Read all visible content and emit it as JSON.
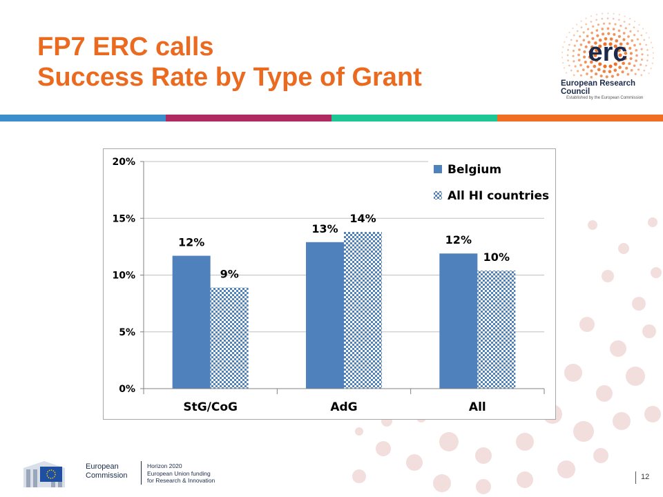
{
  "slide": {
    "title_line1": "FP7 ERC calls",
    "title_line2": "Success Rate by Type of Grant",
    "page_number": "12"
  },
  "erc": {
    "logo_text": "erc",
    "name": "European Research Council",
    "subtitle": "Established by the European Commission"
  },
  "footer": {
    "ec_line1": "European",
    "ec_line2": "Commission",
    "h2020_line1": "Horizon 2020",
    "h2020_line2": "European Union funding",
    "h2020_line3": "for Research & Innovation"
  },
  "colors": {
    "title": "#ea6a1f",
    "stripe": [
      "#3c8dcb",
      "#b02a62",
      "#1dc795",
      "#f16d22"
    ],
    "belgium": "#4f81bd",
    "all_hi_pattern": "#4f81bd",
    "dots": "#f3dede"
  },
  "chart_data": {
    "type": "bar",
    "categories": [
      "StG/CoG",
      "AdG",
      "All"
    ],
    "series": [
      {
        "name": "Belgium",
        "values": [
          11.7,
          12.9,
          11.9
        ],
        "labels": [
          "12%",
          "13%",
          "12%"
        ],
        "pattern": "solid"
      },
      {
        "name": "All HI countries",
        "values": [
          8.9,
          13.8,
          10.4
        ],
        "labels": [
          "9%",
          "14%",
          "10%"
        ],
        "pattern": "checkered"
      }
    ],
    "ylim": [
      0,
      20
    ],
    "yticks": [
      "0%",
      "5%",
      "10%",
      "15%",
      "20%"
    ],
    "ytick_values": [
      0,
      5,
      10,
      15,
      20
    ],
    "grid": true,
    "legend_position": "top-right"
  }
}
